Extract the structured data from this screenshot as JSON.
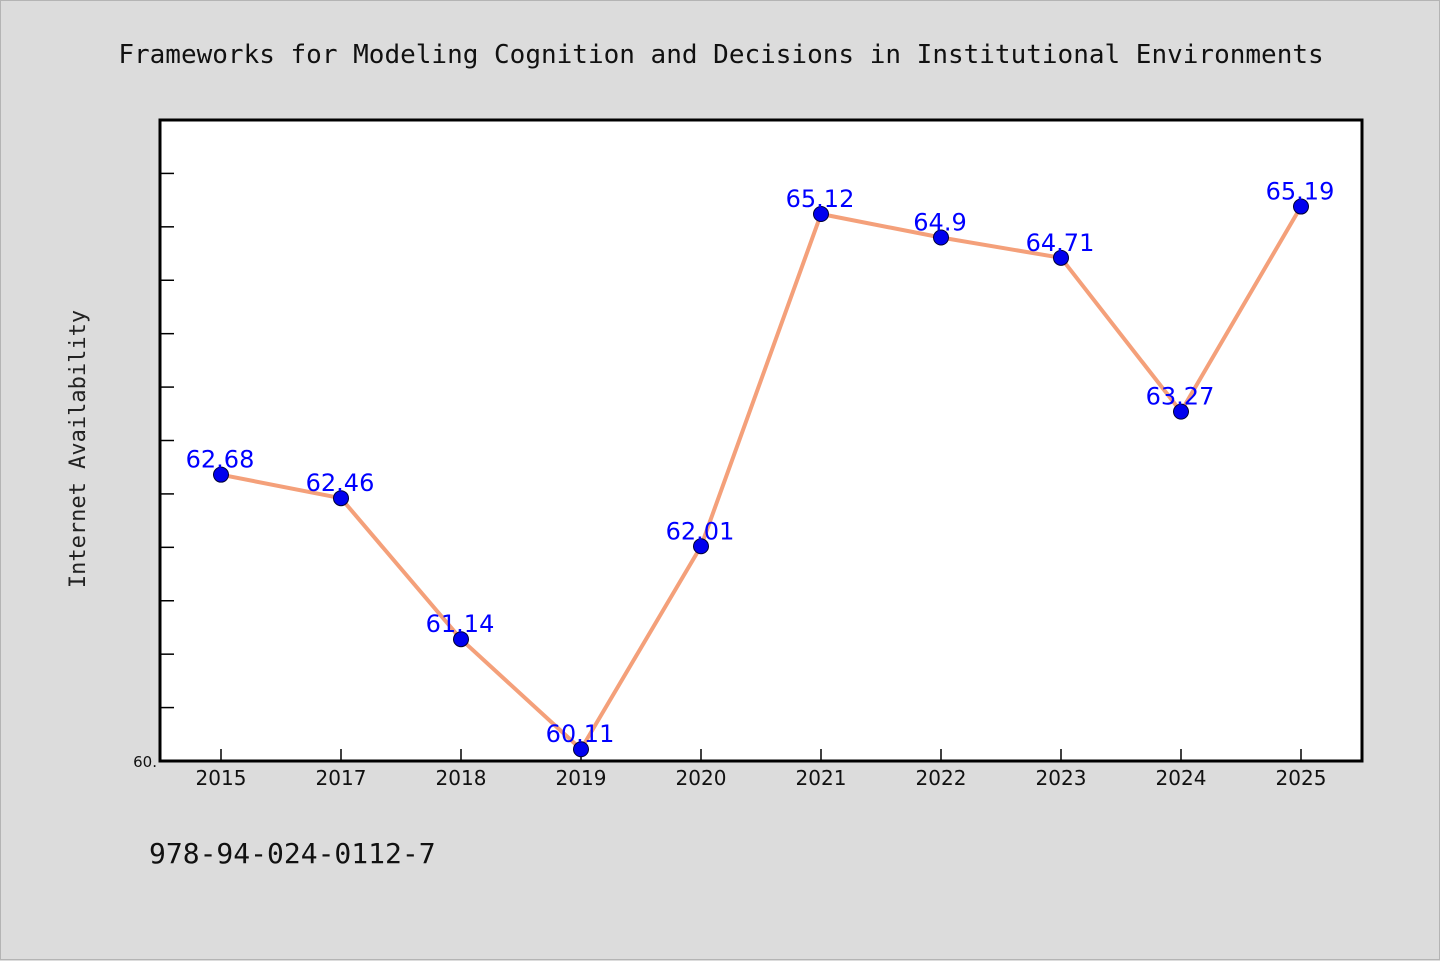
{
  "chart_data": {
    "type": "line",
    "title": "Frameworks for Modeling Cognition and Decisions in Institutional Environments",
    "ylabel": "Internet Availability",
    "xlabel": "",
    "categories": [
      "2015",
      "2017",
      "2018",
      "2019",
      "2020",
      "2021",
      "2022",
      "2023",
      "2024",
      "2025"
    ],
    "series": [
      {
        "values": [
          62.68,
          62.46,
          61.14,
          60.11,
          62.01,
          65.12,
          64.9,
          64.71,
          63.27,
          65.19
        ],
        "data_labels": [
          "62.68",
          "62.46",
          "61.14",
          "60.11",
          "62.01",
          "65.12",
          "64.9",
          "64.71",
          "63.27",
          "65.19"
        ],
        "line_color": "#f4a07a",
        "marker_color": "#0000ee"
      }
    ],
    "ylim": [
      60,
      66
    ],
    "yticks_labeled": [
      "60."
    ],
    "minor_tick_step": 0.5,
    "grid": false,
    "legend": "none"
  },
  "footer": {
    "isbn": "978-94-024-0112-7"
  },
  "colors": {
    "background": "#dcdcdc",
    "plot_background": "#ffffff",
    "data_label": "#0000ff"
  }
}
